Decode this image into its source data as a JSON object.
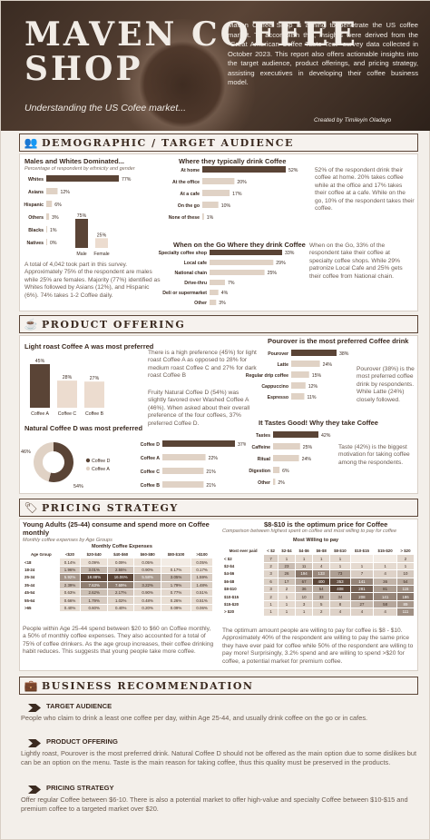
{
  "header": {
    "title_line1": "MAVEN COFFEE",
    "title_line2": "SHOP",
    "subtitle": "Understanding the US Cofee market...",
    "intro": "Maven Coffee Shop is aiming to penetrate the US coffee market. To accomplish this, insights were derived from the \"Great American Coffee Taste Test\" survey data collected in October 2023. This report also offers actionable insights into the target audience, product offerings, and pricing strategy, assisting executives in developing their coffee business model.",
    "credit": "Created by Timileyin Oladayo"
  },
  "sections": {
    "demographic": "DEMOGRAPHIC / TARGET AUDIENCE",
    "product": "PRODUCT OFFERING",
    "pricing": "PRICING STRATEGY",
    "recommend": "BUSINESS RECOMMENDATION"
  },
  "colors": {
    "dark": "#5a4436",
    "light": "#e0d2c5",
    "mid": "#b79f8c"
  },
  "chart_data": [
    {
      "type": "bar",
      "title": "Males and Whites Dominated...",
      "subtitle": "Percentage of respondent by ethnicity and gender",
      "categories": [
        "Whites",
        "Asians",
        "Hispanic",
        "Others",
        "Blacks",
        "Natives"
      ],
      "values": [
        77,
        12,
        6,
        3,
        1,
        0
      ],
      "value_labels": [
        "77%",
        "12%",
        "6%",
        "3%",
        "1%",
        "0%"
      ]
    },
    {
      "type": "bar",
      "categories": [
        "Male",
        "Female"
      ],
      "values": [
        75,
        25
      ],
      "value_labels": [
        "75%",
        "25%"
      ]
    },
    {
      "type": "bar",
      "title": "Where they typically drink Coffee",
      "categories": [
        "At home",
        "At the office",
        "At a cafe",
        "On the go",
        "None of these"
      ],
      "values": [
        52,
        20,
        17,
        10,
        1
      ],
      "value_labels": [
        "52%",
        "20%",
        "17%",
        "10%",
        "1%"
      ]
    },
    {
      "type": "bar",
      "title": "When on the Go Where they drink Coffee",
      "categories": [
        "Specialty coffee shop",
        "Local cafe",
        "National chain",
        "Drive-thru",
        "Deli or supermarket",
        "Other"
      ],
      "values": [
        33,
        29,
        25,
        7,
        4,
        3
      ],
      "value_labels": [
        "33%",
        "29%",
        "25%",
        "7%",
        "4%",
        "3%"
      ]
    },
    {
      "type": "bar",
      "title": "Light roast Coffee A was most preferred",
      "categories": [
        "Coffee A",
        "Coffee C",
        "Coffee B"
      ],
      "values": [
        45,
        28,
        27
      ],
      "value_labels": [
        "45%",
        "28%",
        "27%"
      ]
    },
    {
      "type": "pie",
      "title": "Natural Coffee D was most preferred",
      "categories": [
        "Coffee D",
        "Coffee A"
      ],
      "values": [
        54,
        46
      ],
      "value_labels": [
        "54%",
        "46%"
      ]
    },
    {
      "type": "bar",
      "categories": [
        "Coffee D",
        "Coffee A",
        "Coffee C",
        "Coffee B"
      ],
      "values": [
        37,
        22,
        21,
        21
      ],
      "value_labels": [
        "37%",
        "22%",
        "21%",
        "21%"
      ]
    },
    {
      "type": "bar",
      "title": "Pourover is the most preferred Coffee drink",
      "categories": [
        "Pourover",
        "Latte",
        "Regular drip coffee",
        "Cappuccino",
        "Espresso"
      ],
      "values": [
        38,
        24,
        15,
        12,
        11
      ],
      "value_labels": [
        "38%",
        "24%",
        "15%",
        "12%",
        "11%"
      ]
    },
    {
      "type": "bar",
      "title": "It Tastes Good! Why they take Coffee",
      "categories": [
        "Tastes",
        "Caffeine",
        "Ritual",
        "Digestion",
        "Other"
      ],
      "values": [
        42,
        25,
        24,
        6,
        2
      ],
      "value_labels": [
        "42%",
        "25%",
        "24%",
        "6%",
        "2%"
      ]
    },
    {
      "type": "heatmap",
      "title": "Young Adults (25-44) consume and spend more on Coffee monthly",
      "subtitle": "Monthly coffee expenses by Age Groups",
      "col_header": "Monthly Coffee Expenses",
      "columns": [
        "Age Group",
        "<$20",
        "$20-$40",
        "$40-$60",
        "$60-$80",
        "$80-$100",
        ">$100"
      ],
      "rows": [
        [
          "<18",
          "0.14%",
          "0.09%",
          "0.09%",
          "0.05%",
          "",
          "0.05%"
        ],
        [
          "18-24",
          "1.96%",
          "3.01%",
          "2.55%",
          "0.90%",
          "0.17%",
          "0.17%"
        ],
        [
          "25-34",
          "5.92%",
          "18.88%",
          "16.06%",
          "5.58%",
          "3.05%",
          "1.59%"
        ],
        [
          "35-44",
          "2.39%",
          "7.63%",
          "7.69%",
          "3.22%",
          "1.79%",
          "1.48%"
        ],
        [
          "45-54",
          "0.63%",
          "2.62%",
          "2.17%",
          "0.90%",
          "0.77%",
          "0.51%"
        ],
        [
          "55-64",
          "0.66%",
          "1.79%",
          "1.02%",
          "0.48%",
          "0.26%",
          "0.51%"
        ],
        [
          ">65",
          "0.40%",
          "0.60%",
          "0.40%",
          "0.20%",
          "0.09%",
          "0.06%"
        ]
      ]
    },
    {
      "type": "heatmap",
      "title": "$8-$10 is the optimum price for Coffee",
      "subtitle": "Comparison between highest spent on coffee and most willing to pay for coffee",
      "col_header": "Most Willing to pay",
      "columns": [
        "Most ever paid",
        "< $2",
        "$2-$4",
        "$4-$6",
        "$6-$8",
        "$8-$10",
        "$10-$15",
        "$15-$20",
        "> $20"
      ],
      "rows": [
        [
          "< $2",
          "7",
          "1",
          "1",
          "1",
          "1",
          "",
          "",
          "2"
        ],
        [
          "$2-$4",
          "2",
          "23",
          "11",
          "4",
          "1",
          "1",
          "1",
          "1"
        ],
        [
          "$4-$6",
          "3",
          "26",
          "194",
          "133",
          "73",
          "7",
          "4",
          "10"
        ],
        [
          "$6-$8",
          "6",
          "17",
          "67",
          "400",
          "353",
          "141",
          "36",
          "54"
        ],
        [
          "$8-$10",
          "3",
          "2",
          "36",
          "54",
          "408",
          "281",
          "81",
          "115"
        ],
        [
          "$10-$15",
          "2",
          "1",
          "10",
          "33",
          "34",
          "208",
          "141",
          "186"
        ],
        [
          "$15-$20",
          "1",
          "1",
          "3",
          "5",
          "8",
          "27",
          "58",
          "89"
        ],
        [
          "> $20",
          "1",
          "1",
          "1",
          "2",
          "4",
          "4",
          "4",
          "111"
        ]
      ]
    }
  ],
  "texts": {
    "demo_note": "A total of 4,042 took part in this survey. Approximately 75% of the respondent are males while 25% are females. Majority (77%) identified as Whites followed by Asians (12%), and Hispanic (6%). 74% takes 1-2 Coffee daily.",
    "drink_note": "52% of the respondent drink their coffee at home. 20% takes coffee while at the office and 17% takes their coffee at a cafe. While on the go, 10% of the respondent takes their coffee.",
    "go_note": "When on the Go, 33% of the respondent take their coffee at specialty coffee shops. While 29% patronize Local Cafe and 25% gets their coffee from National chain.",
    "light_note1": "There is a high preference (45%) for light roast Coffee A as opposed to 28% for medium roast Coffee C and 27% for dark roast Coffee B",
    "light_note2": "Fruity Natural Coffee D (54%) was slightly favored over Washed Coffee A (46%). When asked about their overall preference of the four coffees, 37% preferred Coffee D.",
    "pour_note": "Pourover (38%) is the most preferred coffee drink by respondents. While Latte (24%) closely followed.",
    "taste_note": "Taste (42%) is the biggest motivation for taking coffee among the respondents.",
    "age_note": "People within Age 25-44 spend between $20 to $60 on Coffee monthly, a 50% of monthly coffee expenses. They also accounted for a total of 75% of coffee drinkers. As the age group increases, their coffee drinking habit reduces. This suggests that young people take more coffee.",
    "price_note": "The optimum amount people are willing to pay for coffee is $8 - $10. Approximately 40% of the respondent are willing to pay the same price they have ever paid for coffee while 50% of the respondent are willing to pay more! Surprisingly, 3.2% spend and are willing to spend >$20 for coffee, a potential market for premium coffee."
  },
  "recommend": [
    {
      "h": "TARGET AUDIENCE",
      "b": "People who claim to drink a least one coffee per day, within Age 25-44, and usually drink coffee on the go or in cafes."
    },
    {
      "h": "PRODUCT OFFERING",
      "b": "Lightly roast, Pourover is the most preferred drink. Natural Coffee D should not be offered as the main option due to some dislikes but can be an option on the menu. Taste is the main reason for taking coffee, thus this quality must be preserved in the products."
    },
    {
      "h": "PRICING STRATEGY",
      "b": "Offer regular Coffee between $6-10. There is also a potential market to offer high-value and specialty Coffee between $10-$15 and premium coffee to a targeted market over $20."
    }
  ],
  "icons": [
    "people-icon",
    "coffee-cup-icon",
    "price-tag-icon",
    "briefcase-icon"
  ]
}
